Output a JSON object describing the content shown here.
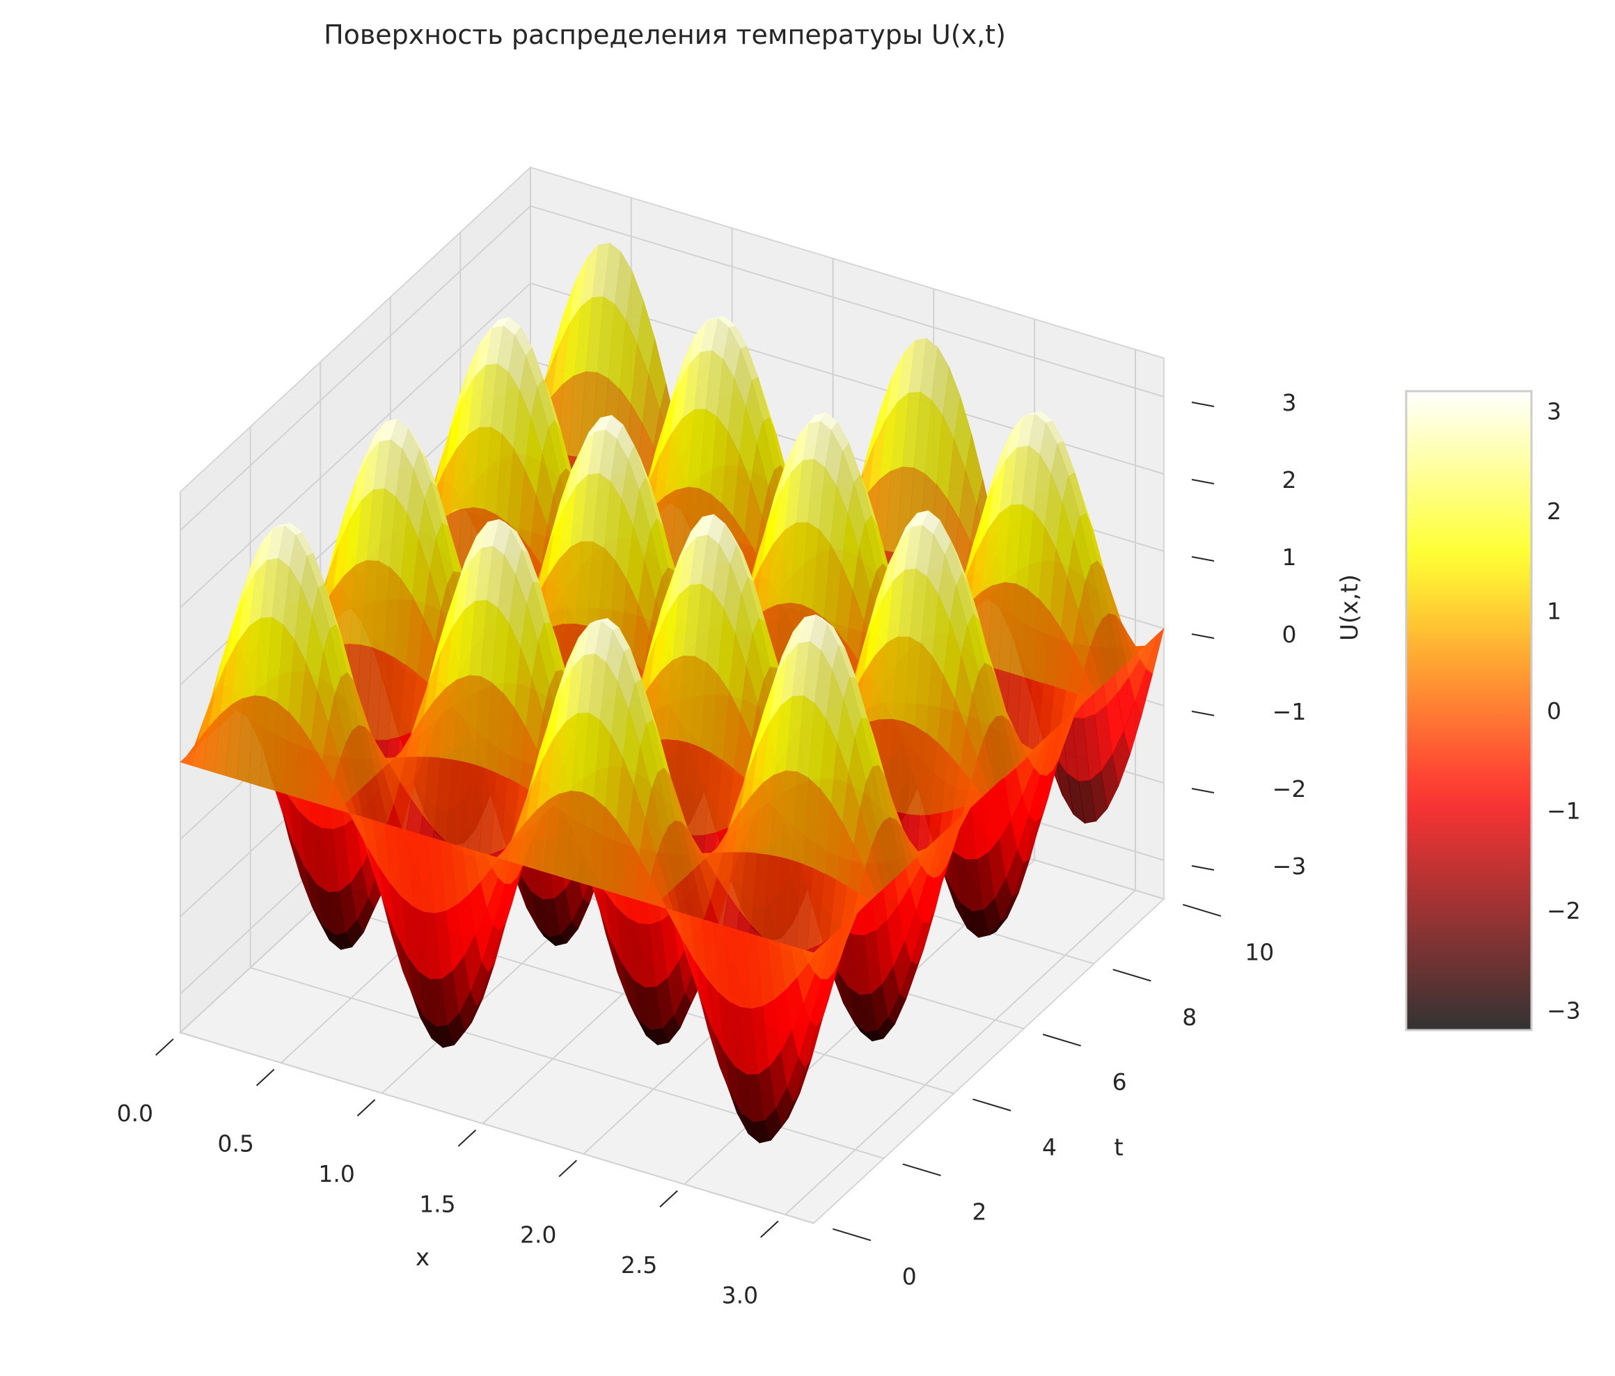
{
  "chart_data": {
    "type": "surface",
    "title": "Поверхность распределения температуры U(x,t)",
    "xlabel": "x",
    "ylabel": "t",
    "zlabel": "U(x,t)",
    "x_range": [
      0,
      3.14159
    ],
    "t_range": [
      0,
      10
    ],
    "z_range": [
      -3.5,
      3.5
    ],
    "x_ticks": [
      "0.0",
      "0.5",
      "1.0",
      "1.5",
      "2.0",
      "2.5",
      "3.0"
    ],
    "t_ticks": [
      "0",
      "2",
      "4",
      "6",
      "8",
      "10"
    ],
    "z_ticks": [
      "−3",
      "−2",
      "−1",
      "0",
      "1",
      "2",
      "3"
    ],
    "surface_model": {
      "form": "A*sin(kx*x)*sin(w*t)",
      "amplitude": 3.1,
      "kx": 4,
      "w": 2
    },
    "grid_resolution": 56,
    "colormap": "hot",
    "alpha": 0.8,
    "colorbar": {
      "range": [
        -3.2,
        3.2
      ],
      "ticks": [
        "3",
        "2",
        "1",
        "0",
        "−1",
        "−2",
        "−3"
      ],
      "tick_values": [
        3,
        2,
        1,
        0,
        -1,
        -2,
        -3
      ]
    },
    "grid": true
  }
}
